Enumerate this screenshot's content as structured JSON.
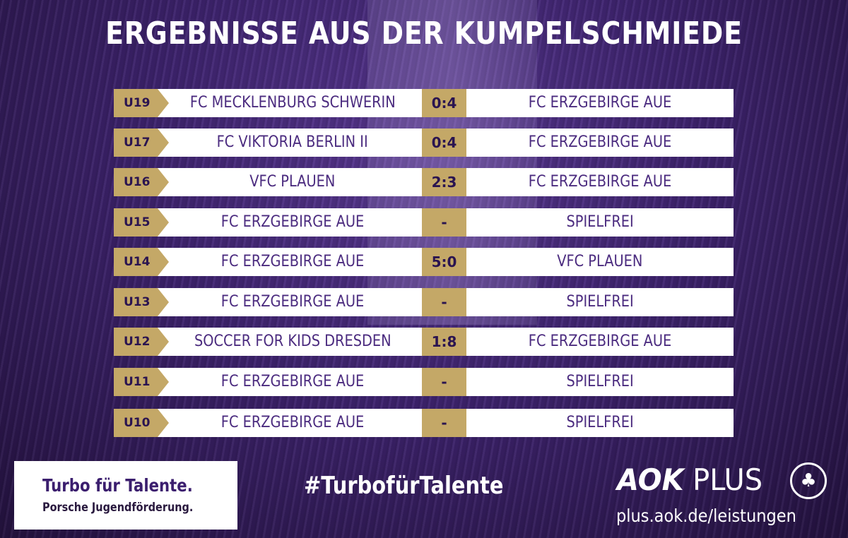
{
  "title": "ERGEBNISSE AUS DER KUMPELSCHMIEDE",
  "colors": {
    "gold": "#c4a867",
    "purple": "#4b2b7f",
    "background": "#3f2470"
  },
  "results": [
    {
      "age": "U19",
      "home": "FC MECKLENBURG SCHWERIN",
      "score": "0:4",
      "away": "FC ERZGEBIRGE AUE"
    },
    {
      "age": "U17",
      "home": "FC VIKTORIA BERLIN II",
      "score": "0:4",
      "away": "FC ERZGEBIRGE AUE"
    },
    {
      "age": "U16",
      "home": "VFC PLAUEN",
      "score": "2:3",
      "away": "FC ERZGEBIRGE AUE"
    },
    {
      "age": "U15",
      "home": "FC ERZGEBIRGE AUE",
      "score": "-",
      "away": "SPIELFREI"
    },
    {
      "age": "U14",
      "home": "FC ERZGEBIRGE AUE",
      "score": "5:0",
      "away": "VFC PLAUEN"
    },
    {
      "age": "U13",
      "home": "FC ERZGEBIRGE AUE",
      "score": "-",
      "away": "SPIELFREI"
    },
    {
      "age": "U12",
      "home": "SOCCER FOR KIDS DRESDEN",
      "score": "1:8",
      "away": "FC ERZGEBIRGE AUE"
    },
    {
      "age": "U11",
      "home": "FC ERZGEBIRGE AUE",
      "score": "-",
      "away": "SPIELFREI"
    },
    {
      "age": "U10",
      "home": "FC ERZGEBIRGE AUE",
      "score": "-",
      "away": "SPIELFREI"
    }
  ],
  "footer": {
    "sponsor_line1": "Turbo für Talente.",
    "sponsor_line2": "Porsche Jugendförderung.",
    "hashtag": "#TurbofürTalente",
    "aok_bold": "AOK",
    "aok_light": "PLUS",
    "aok_icon": "aok-tree-icon",
    "url": "plus.aok.de/leistungen"
  }
}
